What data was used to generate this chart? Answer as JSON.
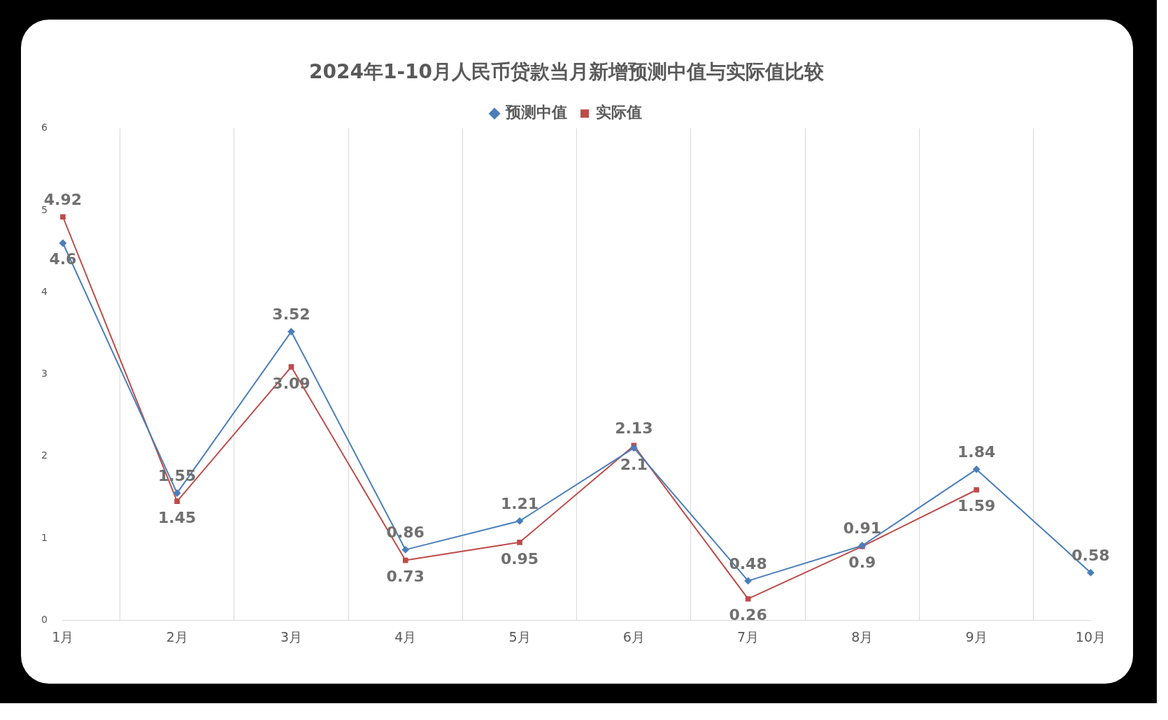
{
  "chart_data": {
    "type": "line",
    "title": "2024年1-10月人民币贷款当月新增预测中值与实际值比较",
    "categories": [
      "1月",
      "2月",
      "3月",
      "4月",
      "5月",
      "6月",
      "7月",
      "8月",
      "9月",
      "10月"
    ],
    "series": [
      {
        "name": "预测中值",
        "color": "#4a7ebb",
        "values": [
          4.6,
          1.55,
          3.52,
          0.86,
          1.21,
          2.1,
          0.48,
          0.91,
          1.84,
          0.58
        ],
        "marker": "diamond"
      },
      {
        "name": "实际值",
        "color": "#be4b48",
        "values": [
          4.92,
          1.45,
          3.09,
          0.73,
          0.95,
          2.13,
          0.26,
          0.9,
          1.59,
          null
        ],
        "marker": "square"
      }
    ],
    "ylim": [
      0,
      6
    ],
    "yticks": [
      0,
      1,
      2,
      3,
      4,
      5,
      6
    ],
    "grid": "x",
    "legend": "top",
    "data_labels": true
  }
}
